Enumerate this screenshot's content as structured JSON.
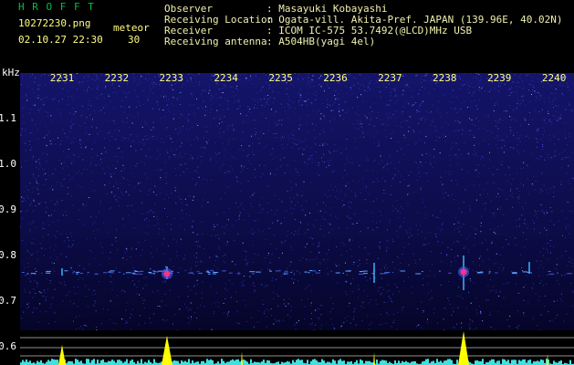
{
  "app": {
    "name": "H R O F F T",
    "file": "10272230.png",
    "datetime": "02.10.27 22:30",
    "counter_label": "meteor",
    "counter": "30"
  },
  "info": [
    {
      "label": "Observer",
      "value": ": Masayuki Kobayashi"
    },
    {
      "label": "Receiving Location",
      "value": ": Ogata-vill. Akita-Pref. JAPAN (139.96E, 40.02N)"
    },
    {
      "label": "Receiver",
      "value": ": ICOM IC-575 53.7492(@LCD)MHz USB"
    },
    {
      "label": "Receiving antenna",
      "value": ": A504HB(yagi 4el)"
    }
  ],
  "spectrogram": {
    "unit": "kHz",
    "time_ticks": [
      "2231",
      "2232",
      "2233",
      "2234",
      "2235",
      "2236",
      "2237",
      "2238",
      "2239",
      "2240"
    ],
    "freq_ticks": [
      "1.1",
      "1.0",
      "0.9",
      "0.8",
      "0.7",
      "0.6"
    ]
  }
}
